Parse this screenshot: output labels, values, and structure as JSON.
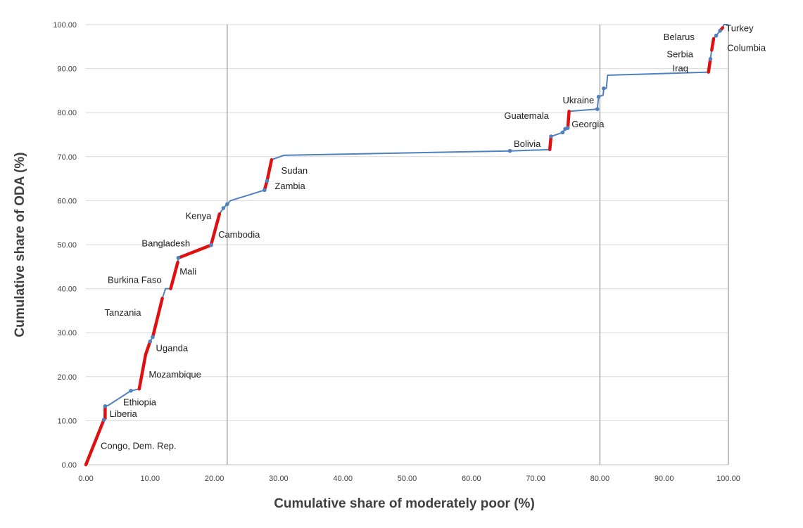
{
  "colors": {
    "line": "#4f81bd",
    "highlight": "#e01010",
    "grid": "#d9d9d9",
    "reference": "#a6a6a6",
    "axis": "#bfbfbf"
  },
  "chart_data": {
    "type": "line",
    "xlabel": "Cumulative share  of moderately poor  (%)",
    "ylabel": "Cumulative share of ODA (%)",
    "xlim": [
      0,
      100
    ],
    "ylim": [
      0,
      100
    ],
    "x_ticks": [
      "0.00",
      "10.00",
      "20.00",
      "30.00",
      "40.00",
      "50.00",
      "60.00",
      "70.00",
      "80.00",
      "90.00",
      "100.00"
    ],
    "y_ticks": [
      "0.00",
      "10.00",
      "20.00",
      "30.00",
      "40.00",
      "50.00",
      "60.00",
      "70.00",
      "80.00",
      "90.00",
      "100.00"
    ],
    "grid": "horizontal",
    "reference_lines_x": [
      22,
      80
    ],
    "series": [
      {
        "values_xy": [
          [
            0,
            0
          ],
          [
            2.8,
            10.2
          ],
          [
            3.0,
            13.3
          ],
          [
            3.5,
            13.5
          ],
          [
            7.0,
            16.8
          ],
          [
            8.3,
            17.2
          ],
          [
            9.3,
            25.0
          ],
          [
            10.0,
            28.0
          ],
          [
            10.4,
            29.0
          ],
          [
            11.9,
            37.8
          ],
          [
            12.4,
            40.0
          ],
          [
            13.2,
            40.0
          ],
          [
            14.3,
            46.0
          ],
          [
            14.4,
            47.0
          ],
          [
            19.5,
            49.9
          ],
          [
            20.8,
            57.0
          ],
          [
            21.4,
            58.3
          ],
          [
            22.0,
            59.2
          ],
          [
            22.5,
            60.0
          ],
          [
            27.8,
            62.4
          ],
          [
            28.2,
            64.5
          ],
          [
            28.9,
            69.3
          ],
          [
            30.8,
            70.3
          ],
          [
            66.0,
            71.3
          ],
          [
            72.2,
            71.6
          ],
          [
            72.4,
            74.6
          ],
          [
            72.8,
            74.8
          ],
          [
            74.2,
            75.5
          ],
          [
            74.6,
            76.3
          ],
          [
            75.0,
            76.5
          ],
          [
            75.2,
            80.3
          ],
          [
            79.6,
            80.8
          ],
          [
            79.8,
            83.6
          ],
          [
            80.5,
            84.0
          ],
          [
            80.6,
            85.5
          ],
          [
            81.0,
            85.5
          ],
          [
            81.2,
            88.5
          ],
          [
            96.9,
            89.2
          ],
          [
            97.2,
            92.2
          ],
          [
            97.4,
            94.2
          ],
          [
            97.7,
            96.8
          ],
          [
            98.1,
            97.5
          ],
          [
            98.7,
            98.6
          ],
          [
            99.1,
            99.3
          ],
          [
            99.3,
            100.0
          ],
          [
            100.0,
            100.0
          ]
        ],
        "highlight_segments": [
          [
            [
              0,
              0
            ],
            [
              2.8,
              10.2
            ]
          ],
          [
            [
              3.0,
              10.5
            ],
            [
              3.0,
              13.3
            ]
          ],
          [
            [
              8.3,
              17.2
            ],
            [
              9.3,
              25.0
            ],
            [
              10.0,
              28.0
            ]
          ],
          [
            [
              10.4,
              29.0
            ],
            [
              11.9,
              37.8
            ]
          ],
          [
            [
              13.2,
              40.0
            ],
            [
              14.3,
              46.0
            ]
          ],
          [
            [
              14.4,
              47.0
            ],
            [
              19.5,
              49.9
            ]
          ],
          [
            [
              19.5,
              50.0
            ],
            [
              20.8,
              57.0
            ]
          ],
          [
            [
              27.8,
              62.4
            ],
            [
              28.2,
              64.5
            ]
          ],
          [
            [
              28.2,
              64.5
            ],
            [
              28.9,
              69.3
            ]
          ],
          [
            [
              72.2,
              71.6
            ],
            [
              72.4,
              74.6
            ]
          ],
          [
            [
              75.0,
              76.5
            ],
            [
              75.2,
              80.3
            ]
          ],
          [
            [
              96.9,
              89.2
            ],
            [
              97.2,
              92.2
            ]
          ],
          [
            [
              97.4,
              94.2
            ],
            [
              97.7,
              96.8
            ]
          ],
          [
            [
              98.7,
              98.6
            ],
            [
              99.1,
              99.3
            ]
          ]
        ],
        "markers": [
          [
            2.8,
            10.2
          ],
          [
            3.0,
            13.3
          ],
          [
            7.0,
            16.8
          ],
          [
            10.0,
            28.0
          ],
          [
            10.4,
            29.0
          ],
          [
            14.4,
            47.0
          ],
          [
            19.5,
            49.9
          ],
          [
            21.4,
            58.3
          ],
          [
            22.0,
            59.2
          ],
          [
            27.8,
            62.4
          ],
          [
            28.2,
            64.5
          ],
          [
            66.0,
            71.3
          ],
          [
            72.4,
            74.6
          ],
          [
            74.2,
            75.5
          ],
          [
            74.6,
            76.3
          ],
          [
            75.0,
            76.5
          ],
          [
            79.6,
            80.8
          ],
          [
            79.8,
            83.6
          ],
          [
            80.6,
            85.5
          ],
          [
            97.2,
            92.2
          ],
          [
            98.1,
            97.5
          ],
          [
            98.7,
            98.6
          ]
        ]
      }
    ],
    "annotations": [
      {
        "text": "Congo, Dem. Rep.",
        "x": 2.3,
        "y": 3.6
      },
      {
        "text": "Liberia",
        "x": 3.7,
        "y": 10.9
      },
      {
        "text": "Ethiopia",
        "x": 5.8,
        "y": 13.5
      },
      {
        "text": "Mozambique",
        "x": 9.8,
        "y": 19.8
      },
      {
        "text": "Uganda",
        "x": 10.9,
        "y": 25.8
      },
      {
        "text": "Tanzania",
        "x": 2.9,
        "y": 33.9
      },
      {
        "text": "Burkina  Faso",
        "x": 3.4,
        "y": 41.3
      },
      {
        "text": "Mali",
        "x": 14.6,
        "y": 43.2
      },
      {
        "text": "Bangladesh",
        "x": 8.7,
        "y": 49.6
      },
      {
        "text": "Cambodia",
        "x": 20.6,
        "y": 51.6
      },
      {
        "text": "Kenya",
        "x": 15.5,
        "y": 55.8
      },
      {
        "text": "Zambia",
        "x": 29.4,
        "y": 62.6
      },
      {
        "text": "Sudan",
        "x": 30.4,
        "y": 66.1
      },
      {
        "text": "Bolivia",
        "x": 66.6,
        "y": 72.2
      },
      {
        "text": "Georgia",
        "x": 75.6,
        "y": 76.7
      },
      {
        "text": "Guatemala",
        "x": 65.1,
        "y": 78.6
      },
      {
        "text": "Ukraine",
        "x": 74.2,
        "y": 82.1
      },
      {
        "text": "Iraq",
        "x": 91.3,
        "y": 89.4
      },
      {
        "text": "Serbia",
        "x": 90.4,
        "y": 92.6
      },
      {
        "text": "Belarus",
        "x": 89.9,
        "y": 96.5
      },
      {
        "text": "Columbia",
        "x": 99.8,
        "y": 94.0
      },
      {
        "text": "Turkey",
        "x": 99.6,
        "y": 98.5
      }
    ]
  }
}
